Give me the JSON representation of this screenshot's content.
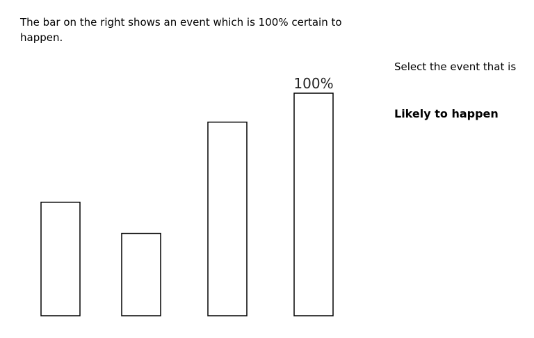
{
  "intro_text": "The bar on the right shows an event which is 100% certain to happen.",
  "prompt_text": "Select the event that is",
  "target_text": "Likely to happen",
  "chart_data": {
    "type": "bar",
    "categories": [
      "",
      "",
      "",
      ""
    ],
    "values": [
      51,
      37,
      87,
      100
    ],
    "data_labels": [
      "",
      "",
      "",
      "100%"
    ],
    "ylim": [
      0,
      100
    ],
    "grid": false,
    "bar_fill": "#ffffff",
    "bar_stroke": "#000000"
  }
}
